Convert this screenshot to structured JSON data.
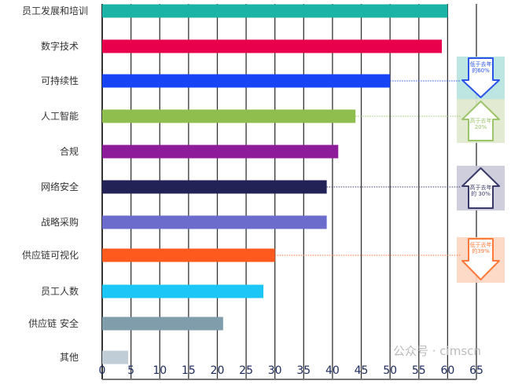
{
  "chart_data": {
    "type": "bar",
    "orientation": "horizontal",
    "categories": [
      "员工发展和培训",
      "数字技术",
      "可持续性",
      "人工智能",
      "合规",
      "网络安全",
      "战略采购",
      "供应链可视化",
      "员工人数",
      "供应链 安全",
      "其他"
    ],
    "values": [
      60,
      59,
      50,
      44,
      41,
      39,
      39,
      30,
      28,
      21,
      4.5
    ],
    "colors": [
      "#1bb3a6",
      "#e8004c",
      "#1744f5",
      "#8fbe4e",
      "#8e1c9a",
      "#222257",
      "#6c6ccc",
      "#ff5a1e",
      "#1cc7f7",
      "#7f9dab",
      "#c0ccd6"
    ],
    "xlim": [
      0,
      65
    ],
    "xticks": [
      0,
      5,
      10,
      15,
      20,
      25,
      30,
      35,
      40,
      45,
      50,
      55,
      60,
      65
    ],
    "grid": true,
    "annotations": [
      {
        "category": "可持续性",
        "direction": "down",
        "text": "低于去年的60%",
        "color": "#2a55e8",
        "bg": "#b6e2de"
      },
      {
        "category": "人工智能",
        "direction": "up",
        "text": "高于去年20%",
        "color": "#9cc46a",
        "bg": "#dfe9cc"
      },
      {
        "category": "网络安全",
        "direction": "up",
        "text": "高于去年的 30%",
        "color": "#3a3a6a",
        "bg": "#c9c9d9"
      },
      {
        "category": "供应链可视化",
        "direction": "down",
        "text": "低于去年的39%",
        "color": "#ff7a3a",
        "bg": "#fdd6c2"
      }
    ]
  },
  "watermark": "公众号 · cimscn"
}
